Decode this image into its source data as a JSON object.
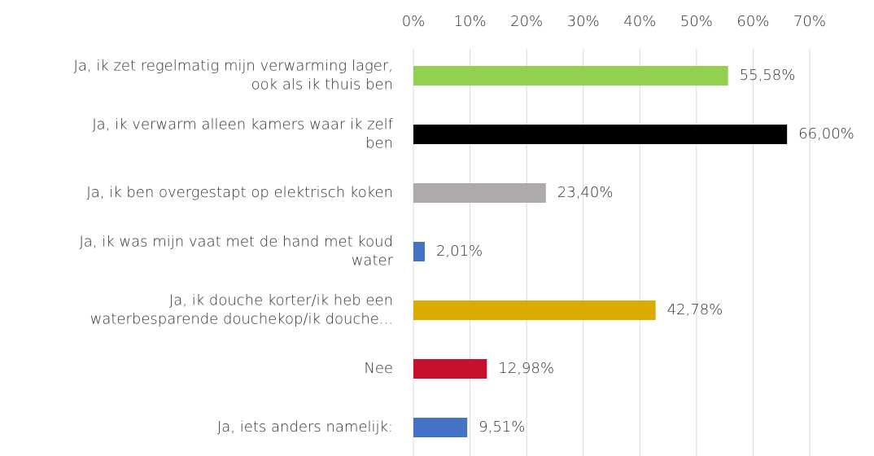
{
  "chart_data": {
    "type": "bar",
    "orientation": "horizontal",
    "categories": [
      [
        "Ja, ik zet regelmatig mijn verwarming lager,",
        "ook als ik thuis ben"
      ],
      [
        "Ja, ik verwarm alleen kamers waar ik zelf",
        "ben"
      ],
      [
        "Ja, ik ben overgestapt op elektrisch koken"
      ],
      [
        "Ja, ik was mijn vaat met de hand met koud",
        "water"
      ],
      [
        "Ja, ik douche korter/ik heb een",
        "waterbesparende douchekop/ik douche..."
      ],
      [
        "Nee"
      ],
      [
        "Ja, iets anders namelijk:"
      ]
    ],
    "values": [
      55.58,
      66.0,
      23.4,
      2.01,
      42.78,
      12.98,
      9.51
    ],
    "value_labels": [
      "55,58%",
      "66,00%",
      "23,40%",
      "2,01%",
      "42,78%",
      "12,98%",
      "9,51%"
    ],
    "colors": [
      "#92d050",
      "#000000",
      "#aeaaaa",
      "#4472c4",
      "#dbab00",
      "#c8102e",
      "#4472c4"
    ],
    "xlim": [
      0,
      70
    ],
    "xticks": [
      {
        "value": 0,
        "label": "0%"
      },
      {
        "value": 10,
        "label": "10%"
      },
      {
        "value": 20,
        "label": "20%"
      },
      {
        "value": 30,
        "label": "30%"
      },
      {
        "value": 40,
        "label": "40%"
      },
      {
        "value": 50,
        "label": "50%"
      },
      {
        "value": 60,
        "label": "60%"
      },
      {
        "value": 70,
        "label": "70%"
      }
    ],
    "grid": true
  }
}
